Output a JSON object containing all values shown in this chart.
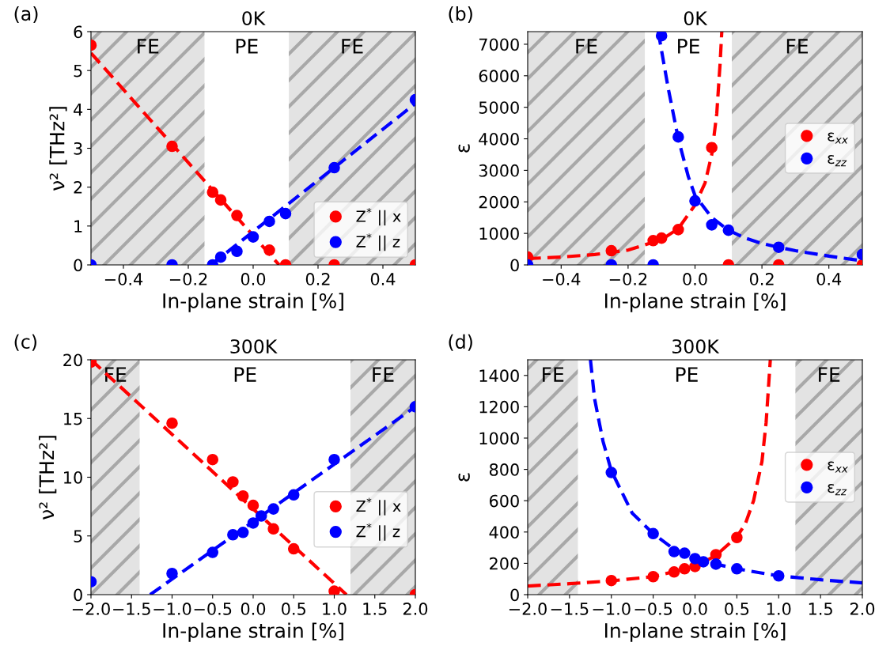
{
  "chart_data": [
    {
      "type": "scatter",
      "title": "0K",
      "xlabel": "In-plane strain [%]",
      "ylabel": "ν² [THz²]",
      "annotations": [
        "(a)",
        "PE"
      ],
      "xlim": [
        -0.5,
        0.5
      ],
      "xticks": [
        {
          "value": -0.4,
          "label": "−0.4"
        },
        {
          "value": -0.2,
          "label": "−0.2"
        },
        {
          "value": 0.0,
          "label": "0.0"
        },
        {
          "value": 0.2,
          "label": "0.2"
        },
        {
          "value": 0.4,
          "label": "0.4"
        }
      ],
      "ylim": [
        0,
        6
      ],
      "yticks": [
        0,
        1,
        2,
        3,
        4,
        5,
        6
      ],
      "legend": "lower right",
      "bands": [
        {
          "axis": "x",
          "from": -0.5,
          "to": -0.15,
          "label": "FE",
          "color": "#e3e3e3"
        },
        {
          "axis": "x",
          "from": 0.11,
          "to": 0.5,
          "label": "FE",
          "color": "#e3e3e3"
        }
      ],
      "series": [
        {
          "type": "line",
          "color": "#ff0000",
          "line_style": "dashed",
          "marker": "none",
          "x": [
            -0.5,
            0.08
          ],
          "values": [
            5.45,
            0
          ]
        },
        {
          "type": "line",
          "color": "#0000ff",
          "line_style": "dashed",
          "marker": "none",
          "x": [
            -0.13,
            0.5
          ],
          "values": [
            0,
            4.15
          ]
        },
        {
          "name": "Z$^{*}$ || x",
          "color": "#ff0000",
          "marker": "circle",
          "x": [
            -0.5,
            -0.25,
            -0.125,
            -0.1,
            -0.05,
            0,
            0.05,
            0.1,
            0.25,
            0.5
          ],
          "values": [
            5.65,
            3.05,
            1.87,
            1.67,
            1.27,
            null,
            0.38,
            0,
            0,
            0
          ]
        },
        {
          "name": "Z$^{*}$ || z",
          "color": "#0000ff",
          "marker": "circle",
          "x": [
            -0.5,
            -0.25,
            -0.125,
            -0.1,
            -0.05,
            0,
            0.05,
            0.1,
            0.25,
            0.5
          ],
          "values": [
            0,
            0,
            0,
            0.2,
            0.35,
            0.72,
            1.12,
            1.32,
            2.5,
            4.25
          ]
        }
      ]
    },
    {
      "type": "scatter",
      "title": "0K",
      "xlabel": "In-plane strain [%]",
      "ylabel": "ε",
      "annotations": [
        "(b)",
        "PE"
      ],
      "xlim": [
        -0.5,
        0.5
      ],
      "xticks": [
        {
          "value": -0.4,
          "label": "−0.4"
        },
        {
          "value": -0.2,
          "label": "−0.2"
        },
        {
          "value": 0.0,
          "label": "0.0"
        },
        {
          "value": 0.2,
          "label": "0.2"
        },
        {
          "value": 0.4,
          "label": "0.4"
        }
      ],
      "ylim": [
        0,
        7400
      ],
      "yticks": [
        0,
        1000,
        2000,
        3000,
        4000,
        5000,
        6000,
        7000
      ],
      "legend": "center right",
      "bands": [
        {
          "axis": "x",
          "from": -0.5,
          "to": -0.15,
          "label": "FE",
          "color": "#e3e3e3"
        },
        {
          "axis": "x",
          "from": 0.11,
          "to": 0.5,
          "label": "FE",
          "color": "#e3e3e3"
        }
      ],
      "series": [
        {
          "type": "line",
          "color": "#ff0000",
          "line_style": "dashed",
          "marker": "none",
          "x": [
            -0.5,
            -0.4,
            -0.3,
            -0.2,
            -0.1,
            -0.05,
            0,
            0.03,
            0.05,
            0.065,
            0.075,
            0.08
          ],
          "values": [
            200,
            250,
            330,
            470,
            800,
            1150,
            1900,
            2600,
            3500,
            4800,
            6400,
            7400
          ]
        },
        {
          "type": "line",
          "color": "#0000ff",
          "line_style": "dashed",
          "marker": "none",
          "x": [
            -0.11,
            -0.1,
            -0.08,
            -0.05,
            -0.02,
            0,
            0.05,
            0.1,
            0.15,
            0.2,
            0.25,
            0.3,
            0.4,
            0.5
          ],
          "values": [
            7400,
            6800,
            5600,
            4000,
            2800,
            2200,
            1500,
            1100,
            850,
            680,
            560,
            450,
            280,
            130
          ]
        },
        {
          "name": "ε$_{xx}$",
          "color": "#ff0000",
          "marker": "circle",
          "x": [
            -0.5,
            -0.25,
            -0.125,
            -0.1,
            -0.05,
            0,
            0.05,
            0.1,
            0.25,
            0.5
          ],
          "values": [
            250,
            450,
            770,
            850,
            1120,
            null,
            3720,
            0,
            0,
            0
          ]
        },
        {
          "name": "ε$_{zz}$",
          "color": "#0000ff",
          "marker": "circle",
          "x": [
            -0.5,
            -0.25,
            -0.125,
            -0.1,
            -0.05,
            0,
            0.05,
            0.1,
            0.25,
            0.5
          ],
          "values": [
            0,
            0,
            0,
            7270,
            4060,
            2030,
            1270,
            1100,
            560,
            330
          ]
        }
      ]
    },
    {
      "type": "scatter",
      "title": "300K",
      "xlabel": "In-plane strain [%]",
      "ylabel": "ν² [THz²]",
      "annotations": [
        "(c)",
        "PE"
      ],
      "xlim": [
        -2,
        2
      ],
      "xticks": [
        {
          "value": -2.0,
          "label": "−2.0"
        },
        {
          "value": -1.5,
          "label": "−1.5"
        },
        {
          "value": -1.0,
          "label": "−1.0"
        },
        {
          "value": -0.5,
          "label": "−0.5"
        },
        {
          "value": 0.0,
          "label": "0.0"
        },
        {
          "value": 0.5,
          "label": "0.5"
        },
        {
          "value": 1.0,
          "label": "1.0"
        },
        {
          "value": 1.5,
          "label": "1.5"
        },
        {
          "value": 2.0,
          "label": "2.0"
        }
      ],
      "ylim": [
        0,
        20
      ],
      "yticks": [
        0,
        5,
        10,
        15,
        20
      ],
      "legend": "right",
      "bands": [
        {
          "axis": "x",
          "from": -2,
          "to": -1.4,
          "label": "FE",
          "color": "#e3e3e3"
        },
        {
          "axis": "x",
          "from": 1.2,
          "to": 2,
          "label": "FE",
          "color": "#e3e3e3"
        }
      ],
      "series": [
        {
          "type": "line",
          "color": "#ff0000",
          "line_style": "dashed",
          "marker": "none",
          "x": [
            -2,
            1.15
          ],
          "values": [
            20,
            0
          ]
        },
        {
          "type": "line",
          "color": "#0000ff",
          "line_style": "dashed",
          "marker": "none",
          "x": [
            -1.27,
            2
          ],
          "values": [
            0,
            16
          ]
        },
        {
          "name": "Z$^{*}$ || x",
          "color": "#ff0000",
          "marker": "circle",
          "x": [
            -2,
            -1,
            -0.5,
            -0.25,
            -0.125,
            0,
            0.1,
            0.25,
            0.5,
            1,
            2
          ],
          "values": [
            19.8,
            14.6,
            11.5,
            9.6,
            8.4,
            7.6,
            null,
            5.6,
            3.9,
            0.3,
            0
          ]
        },
        {
          "name": "Z$^{*}$ || z",
          "color": "#0000ff",
          "marker": "circle",
          "x": [
            -2,
            -1,
            -0.5,
            -0.25,
            -0.125,
            0,
            0.1,
            0.25,
            0.5,
            1,
            2
          ],
          "values": [
            1.1,
            1.8,
            3.6,
            5.1,
            5.3,
            6.1,
            6.7,
            7.3,
            8.5,
            11.5,
            16
          ]
        }
      ]
    },
    {
      "type": "scatter",
      "title": "300K",
      "xlabel": "In-plane strain [%]",
      "ylabel": "ε",
      "annotations": [
        "(d)",
        "PE"
      ],
      "xlim": [
        -2,
        2
      ],
      "xticks": [
        {
          "value": -2.0,
          "label": "−2.0"
        },
        {
          "value": -1.5,
          "label": "−1.5"
        },
        {
          "value": -1.0,
          "label": "−1.0"
        },
        {
          "value": -0.5,
          "label": "−0.5"
        },
        {
          "value": 0.0,
          "label": "0.0"
        },
        {
          "value": 0.5,
          "label": "0.5"
        },
        {
          "value": 1.0,
          "label": "1.0"
        },
        {
          "value": 1.5,
          "label": "1.5"
        },
        {
          "value": 2.0,
          "label": "2.0"
        }
      ],
      "ylim": [
        0,
        1500
      ],
      "yticks": [
        0,
        200,
        400,
        600,
        800,
        1000,
        1200,
        1400
      ],
      "legend": "center right",
      "bands": [
        {
          "axis": "x",
          "from": -2,
          "to": -1.4,
          "label": "FE",
          "color": "#e3e3e3"
        },
        {
          "axis": "x",
          "from": 1.2,
          "to": 2,
          "label": "FE",
          "color": "#e3e3e3"
        }
      ],
      "series": [
        {
          "type": "line",
          "color": "#ff0000",
          "line_style": "dashed",
          "marker": "none",
          "x": [
            -2,
            -1.5,
            -1,
            -0.5,
            0,
            0.25,
            0.5,
            0.6,
            0.7,
            0.8,
            0.85,
            0.9
          ],
          "values": [
            55,
            70,
            88,
            115,
            180,
            250,
            370,
            450,
            600,
            850,
            1100,
            1500
          ]
        },
        {
          "type": "line",
          "color": "#0000ff",
          "line_style": "dashed",
          "marker": "none",
          "x": [
            -1.25,
            -1.2,
            -1.1,
            -1,
            -0.75,
            -0.5,
            -0.25,
            0,
            0.25,
            0.5,
            1,
            1.5,
            2
          ],
          "values": [
            1500,
            1250,
            980,
            790,
            520,
            390,
            290,
            230,
            195,
            165,
            120,
            95,
            75
          ]
        },
        {
          "name": "ε$_{xx}$",
          "color": "#ff0000",
          "marker": "circle",
          "x": [
            -1,
            -0.5,
            -0.25,
            -0.125,
            0,
            0.25,
            0.5
          ],
          "values": [
            90,
            115,
            145,
            165,
            180,
            255,
            365
          ]
        },
        {
          "name": "ε$_{zz}$",
          "color": "#0000ff",
          "marker": "circle",
          "x": [
            -1,
            -0.5,
            -0.25,
            -0.125,
            0,
            0.1,
            0.25,
            0.5,
            1
          ],
          "values": [
            780,
            390,
            275,
            265,
            230,
            210,
            195,
            165,
            120
          ]
        }
      ]
    }
  ]
}
